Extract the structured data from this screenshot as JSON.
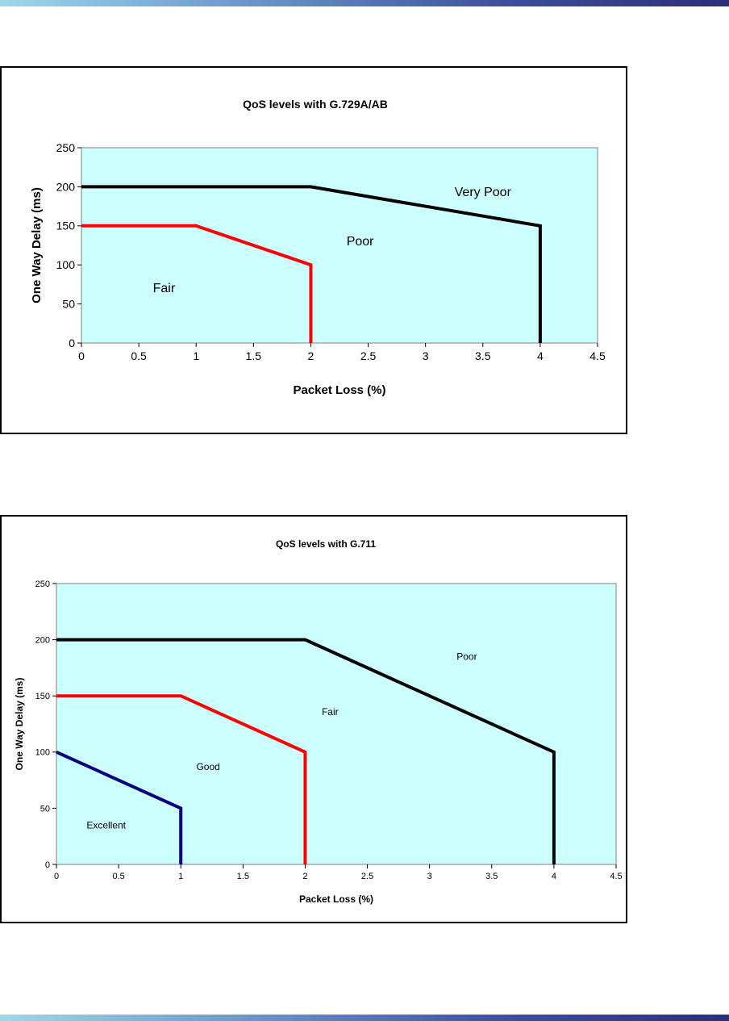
{
  "chart_data": [
    {
      "type": "line",
      "title": "QoS levels with G.729A/AB",
      "xlabel": "Packet Loss (%)",
      "ylabel": "One Way Delay (ms)",
      "xlim": [
        0,
        4.5
      ],
      "ylim": [
        0,
        250
      ],
      "xticks": [
        "0",
        "0.5",
        "1",
        "1.5",
        "2",
        "2.5",
        "3",
        "3.5",
        "4",
        "4.5"
      ],
      "yticks": [
        "0",
        "50",
        "100",
        "150",
        "200",
        "250"
      ],
      "plot_background": "#ccffff",
      "grid": false,
      "legend": "none",
      "series": [
        {
          "color": "#000000",
          "x": [
            0,
            2,
            4,
            4
          ],
          "y": [
            200,
            200,
            150,
            0
          ]
        },
        {
          "color": "#ff0000",
          "x": [
            0,
            1,
            2,
            2
          ],
          "y": [
            150,
            150,
            100,
            0
          ]
        }
      ],
      "region_labels": [
        {
          "text": "Very Poor",
          "x": 3.5,
          "y": 188
        },
        {
          "text": "Poor",
          "x": 2.43,
          "y": 125
        },
        {
          "text": "Fair",
          "x": 0.72,
          "y": 65
        }
      ]
    },
    {
      "type": "line",
      "title": "QoS levels with G.711",
      "xlabel": "Packet Loss (%)",
      "ylabel": "One Way Delay (ms)",
      "xlim": [
        0,
        4.5
      ],
      "ylim": [
        0,
        250
      ],
      "xticks": [
        "0",
        "0.5",
        "1",
        "1.5",
        "2",
        "2.5",
        "3",
        "3.5",
        "4",
        "4.5"
      ],
      "yticks": [
        "0",
        "50",
        "100",
        "150",
        "200",
        "250"
      ],
      "plot_background": "#ccffff",
      "grid": false,
      "legend": "none",
      "series": [
        {
          "color": "#000000",
          "x": [
            0,
            2,
            4,
            4
          ],
          "y": [
            200,
            200,
            100,
            0
          ]
        },
        {
          "color": "#ff0000",
          "x": [
            0,
            1,
            2,
            2
          ],
          "y": [
            150,
            150,
            100,
            0
          ]
        },
        {
          "color": "#000080",
          "x": [
            0,
            1,
            1
          ],
          "y": [
            100,
            50,
            0
          ]
        }
      ],
      "region_labels": [
        {
          "text": "Poor",
          "x": 3.3,
          "y": 182
        },
        {
          "text": "Fair",
          "x": 2.2,
          "y": 133
        },
        {
          "text": "Good",
          "x": 1.22,
          "y": 84
        },
        {
          "text": "Excellent",
          "x": 0.4,
          "y": 32
        }
      ]
    }
  ]
}
